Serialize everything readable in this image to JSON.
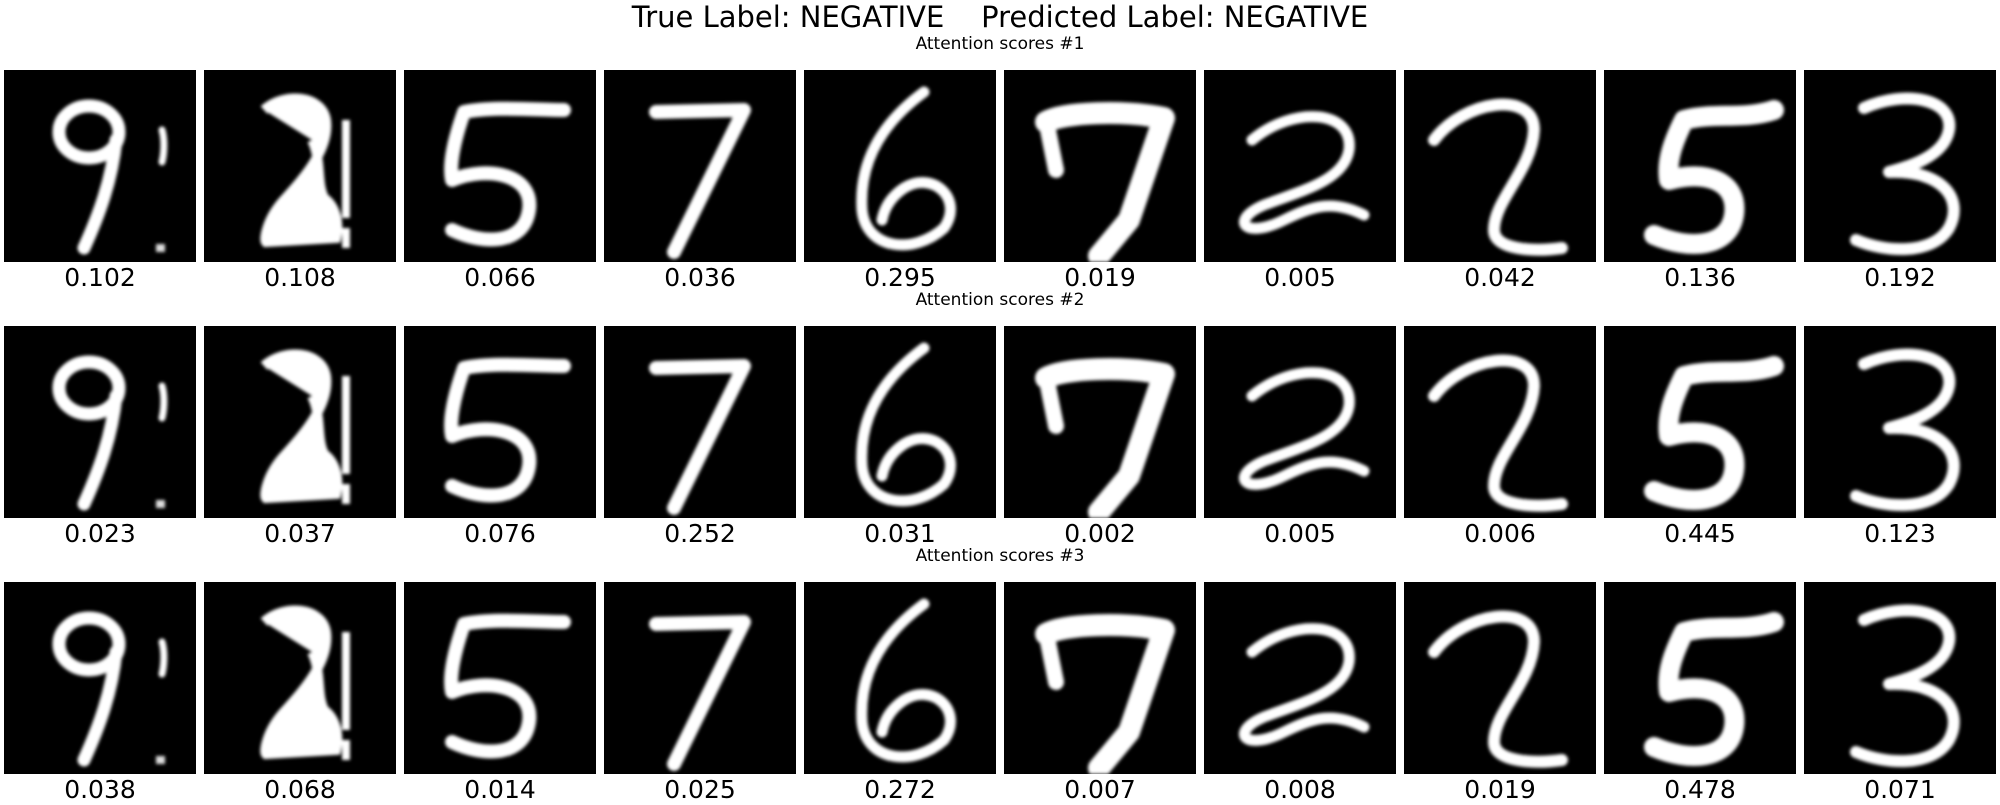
{
  "figure": {
    "title": "True Label: NEGATIVE    Predicted Label: NEGATIVE",
    "digits": [
      {
        "label": "9",
        "icon": "digit-9-icon"
      },
      {
        "label": "2",
        "icon": "digit-2-blocky-icon"
      },
      {
        "label": "5",
        "icon": "digit-5-icon"
      },
      {
        "label": "7",
        "icon": "digit-7-icon"
      },
      {
        "label": "6",
        "icon": "digit-6-icon"
      },
      {
        "label": "7",
        "icon": "digit-7-thick-icon"
      },
      {
        "label": "2",
        "icon": "digit-2-loop-icon"
      },
      {
        "label": "2",
        "icon": "digit-2-icon"
      },
      {
        "label": "5",
        "icon": "digit-5-bold-icon"
      },
      {
        "label": "3",
        "icon": "digit-3-icon"
      }
    ],
    "rows": [
      {
        "subtitle": "Attention scores #1",
        "scores": [
          "0.102",
          "0.108",
          "0.066",
          "0.036",
          "0.295",
          "0.019",
          "0.005",
          "0.042",
          "0.136",
          "0.192"
        ]
      },
      {
        "subtitle": "Attention scores #2",
        "scores": [
          "0.023",
          "0.037",
          "0.076",
          "0.252",
          "0.031",
          "0.002",
          "0.005",
          "0.006",
          "0.445",
          "0.123"
        ]
      },
      {
        "subtitle": "Attention scores #3",
        "scores": [
          "0.038",
          "0.068",
          "0.014",
          "0.025",
          "0.272",
          "0.007",
          "0.008",
          "0.019",
          "0.478",
          "0.071"
        ]
      }
    ]
  }
}
